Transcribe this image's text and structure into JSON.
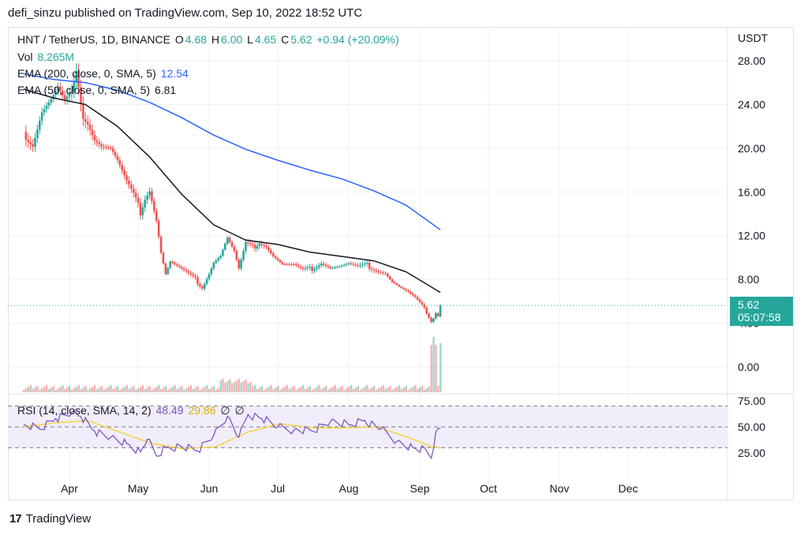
{
  "header": {
    "publish_text": "defi_sinzu published on TradingView.com, Sep 10, 2022 18:52 UTC"
  },
  "footer": {
    "brand": "TradingView",
    "logo_mark": "17"
  },
  "legend": {
    "symbol": "HNT / TetherUS, 1D, BINANCE",
    "o_label": "O",
    "o_val": "4.68",
    "h_label": "H",
    "h_val": "6.00",
    "l_label": "L",
    "l_val": "4.65",
    "c_label": "C",
    "c_val": "5.62",
    "change": "+0.94 (+20.09%)",
    "vol_label": "Vol",
    "vol_val": "8.265M",
    "ema200_label": "EMA (200, close, 0, SMA, 5)",
    "ema200_val": "12.54",
    "ema50_label": "EMA (50, close, 0, SMA, 5)",
    "ema50_val": "6.81",
    "rsi_label": "RSI (14, close, SMA, 14, 2)",
    "rsi_val": "48.49",
    "rsi_ma_val": "29.86",
    "rsi_extra1": "∅",
    "rsi_extra2": "∅"
  },
  "price_tag": {
    "price": "5.62",
    "countdown": "05:07:58"
  },
  "colors": {
    "up": "#26a69a",
    "down": "#ef5350",
    "ema200": "#2962ff",
    "ema50": "#131722",
    "rsi": "#7e57c2",
    "rsi_ma": "#f5d547",
    "rsi_band": "#f1edfb",
    "grid": "#eef0f3"
  },
  "chart_data": [
    {
      "type": "candlestick",
      "title": "HNT / TetherUS, 1D, BINANCE",
      "y_axis_unit": "USDT",
      "y_ticks": [
        "0.00",
        "4.00",
        "8.00",
        "12.00",
        "16.00",
        "20.00",
        "24.00",
        "28.00"
      ],
      "x_ticks": [
        "Apr",
        "May",
        "Jun",
        "Jul",
        "Aug",
        "Sep",
        "Oct",
        "Nov",
        "Dec"
      ],
      "x_months": [
        "Apr",
        "May",
        "Jun",
        "Jul",
        "Aug",
        "Sep",
        "Oct",
        "Nov",
        "Dec"
      ],
      "last_price": 5.62,
      "close_path": [
        [
          "Mar 12",
          21.5
        ],
        [
          "Mar 16",
          20.5
        ],
        [
          "Mar 20",
          23.5
        ],
        [
          "Mar 24",
          24.5
        ],
        [
          "Mar 27",
          25.5
        ],
        [
          "Mar 30",
          24.2
        ],
        [
          "Apr 2",
          24.8
        ],
        [
          "Apr 4",
          26.5
        ],
        [
          "Apr 6",
          23.5
        ],
        [
          "Apr 9",
          22.6
        ],
        [
          "Apr 12",
          21.0
        ],
        [
          "Apr 15",
          20.3
        ],
        [
          "Apr 19",
          20.0
        ],
        [
          "Apr 22",
          18.8
        ],
        [
          "Apr 26",
          16.8
        ],
        [
          "Apr 29",
          15.6
        ],
        [
          "May 2",
          14.2
        ],
        [
          "May 4",
          15.6
        ],
        [
          "May 6",
          16.3
        ],
        [
          "May 9",
          13.5
        ],
        [
          "May 11",
          10.5
        ],
        [
          "May 13",
          8.5
        ],
        [
          "May 15",
          9.6
        ],
        [
          "May 18",
          9.2
        ],
        [
          "May 22",
          8.6
        ],
        [
          "May 26",
          8.0
        ],
        [
          "May 29",
          7.3
        ],
        [
          "Jun 1",
          8.6
        ],
        [
          "Jun 3",
          9.6
        ],
        [
          "Jun 6",
          10.2
        ],
        [
          "Jun 9",
          11.8
        ],
        [
          "Jun 12",
          10.5
        ],
        [
          "Jun 14",
          8.9
        ],
        [
          "Jun 17",
          11.2
        ],
        [
          "Jun 20",
          10.9
        ],
        [
          "Jun 23",
          11.5
        ],
        [
          "Jun 26",
          11.1
        ],
        [
          "Jun 29",
          10.2
        ],
        [
          "Jul 3",
          9.4
        ],
        [
          "Jul 8",
          9.3
        ],
        [
          "Jul 12",
          8.8
        ],
        [
          "Jul 16",
          9.0
        ],
        [
          "Jul 20",
          9.6
        ],
        [
          "Jul 24",
          9.1
        ],
        [
          "Jul 28",
          9.2
        ],
        [
          "Aug 1",
          9.4
        ],
        [
          "Aug 5",
          9.1
        ],
        [
          "Aug 9",
          9.3
        ],
        [
          "Aug 13",
          8.9
        ],
        [
          "Aug 17",
          8.6
        ],
        [
          "Aug 20",
          7.8
        ],
        [
          "Aug 24",
          7.2
        ],
        [
          "Aug 27",
          6.8
        ],
        [
          "Aug 30",
          6.3
        ],
        [
          "Sep 2",
          5.6
        ],
        [
          "Sep 4",
          5.0
        ],
        [
          "Sep 6",
          4.2
        ],
        [
          "Sep 7",
          4.5
        ],
        [
          "Sep 8",
          5.0
        ],
        [
          "Sep 9",
          4.7
        ],
        [
          "Sep 10",
          5.62
        ]
      ],
      "ema200": [
        [
          "Mar 12",
          26.8
        ],
        [
          "Mar 25",
          26.3
        ],
        [
          "Apr 8",
          26.0
        ],
        [
          "Apr 22",
          25.3
        ],
        [
          "May 6",
          24.2
        ],
        [
          "May 20",
          22.8
        ],
        [
          "Jun 3",
          21.2
        ],
        [
          "Jun 17",
          19.9
        ],
        [
          "Jul 1",
          18.9
        ],
        [
          "Jul 15",
          18.0
        ],
        [
          "Jul 29",
          17.2
        ],
        [
          "Aug 12",
          16.1
        ],
        [
          "Aug 26",
          14.8
        ],
        [
          "Sep 10",
          12.54
        ]
      ],
      "ema50": [
        [
          "Mar 12",
          25.4
        ],
        [
          "Mar 25",
          24.6
        ],
        [
          "Apr 8",
          24.0
        ],
        [
          "Apr 22",
          22.0
        ],
        [
          "May 6",
          19.2
        ],
        [
          "May 20",
          15.8
        ],
        [
          "Jun 3",
          13.0
        ],
        [
          "Jun 17",
          11.6
        ],
        [
          "Jul 1",
          11.2
        ],
        [
          "Jul 15",
          10.5
        ],
        [
          "Jul 29",
          10.1
        ],
        [
          "Aug 12",
          9.7
        ],
        [
          "Aug 26",
          8.7
        ],
        [
          "Sep 10",
          6.81
        ]
      ],
      "volume_spike_dates": [
        "Sep 6",
        "Sep 7",
        "Sep 8"
      ]
    },
    {
      "type": "line",
      "title": "RSI (14, close, SMA, 14, 2)",
      "y_ticks": [
        "25.00",
        "50.00",
        "75.00"
      ],
      "band": [
        30,
        70
      ],
      "rsi": [
        [
          "Mar 12",
          52
        ],
        [
          "Mar 19",
          48
        ],
        [
          "Mar 26",
          58
        ],
        [
          "Apr 2",
          64
        ],
        [
          "Apr 6",
          60
        ],
        [
          "Apr 12",
          46
        ],
        [
          "Apr 19",
          40
        ],
        [
          "Apr 26",
          34
        ],
        [
          "May 2",
          26
        ],
        [
          "May 5",
          38
        ],
        [
          "May 9",
          22
        ],
        [
          "May 13",
          30
        ],
        [
          "May 20",
          31
        ],
        [
          "May 27",
          27
        ],
        [
          "Jun 3",
          42
        ],
        [
          "Jun 9",
          60
        ],
        [
          "Jun 14",
          40
        ],
        [
          "Jun 18",
          62
        ],
        [
          "Jun 24",
          58
        ],
        [
          "Jul 1",
          50
        ],
        [
          "Jul 8",
          47
        ],
        [
          "Jul 16",
          46
        ],
        [
          "Jul 24",
          55
        ],
        [
          "Aug 1",
          52
        ],
        [
          "Aug 8",
          56
        ],
        [
          "Aug 15",
          48
        ],
        [
          "Aug 22",
          36
        ],
        [
          "Aug 29",
          30
        ],
        [
          "Sep 4",
          27
        ],
        [
          "Sep 6",
          20
        ],
        [
          "Sep 8",
          45
        ],
        [
          "Sep 10",
          48.49
        ]
      ],
      "rsi_ma": [
        [
          "Mar 12",
          50
        ],
        [
          "Mar 26",
          54
        ],
        [
          "Apr 9",
          56
        ],
        [
          "Apr 23",
          45
        ],
        [
          "May 7",
          34
        ],
        [
          "May 21",
          29
        ],
        [
          "Jun 4",
          31
        ],
        [
          "Jun 18",
          45
        ],
        [
          "Jul 2",
          53
        ],
        [
          "Jul 16",
          49
        ],
        [
          "Jul 30",
          49
        ],
        [
          "Aug 13",
          50
        ],
        [
          "Aug 27",
          40
        ],
        [
          "Sep 6",
          31
        ],
        [
          "Sep 10",
          29.86
        ]
      ]
    }
  ]
}
